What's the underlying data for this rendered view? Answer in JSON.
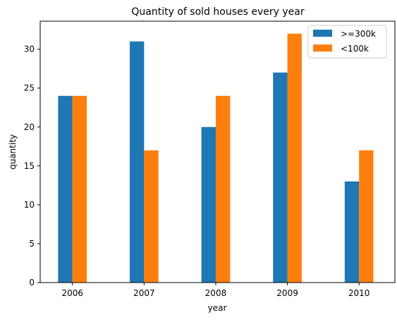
{
  "chart_data": {
    "type": "bar",
    "title": "Quantity of sold houses every year",
    "xlabel": "year",
    "ylabel": "quantity",
    "categories": [
      "2006",
      "2007",
      "2008",
      "2009",
      "2010"
    ],
    "series": [
      {
        "name": ">=300k",
        "values": [
          24,
          31,
          20,
          27,
          13
        ],
        "color": "#1f77b4"
      },
      {
        "name": "<100k",
        "values": [
          24,
          17,
          24,
          32,
          17
        ],
        "color": "#ff7f0e"
      }
    ],
    "ylim": [
      0,
      33.6
    ],
    "yticks": [
      0,
      5,
      10,
      15,
      20,
      25,
      30
    ],
    "grid": false,
    "legend_position": "top-right"
  }
}
